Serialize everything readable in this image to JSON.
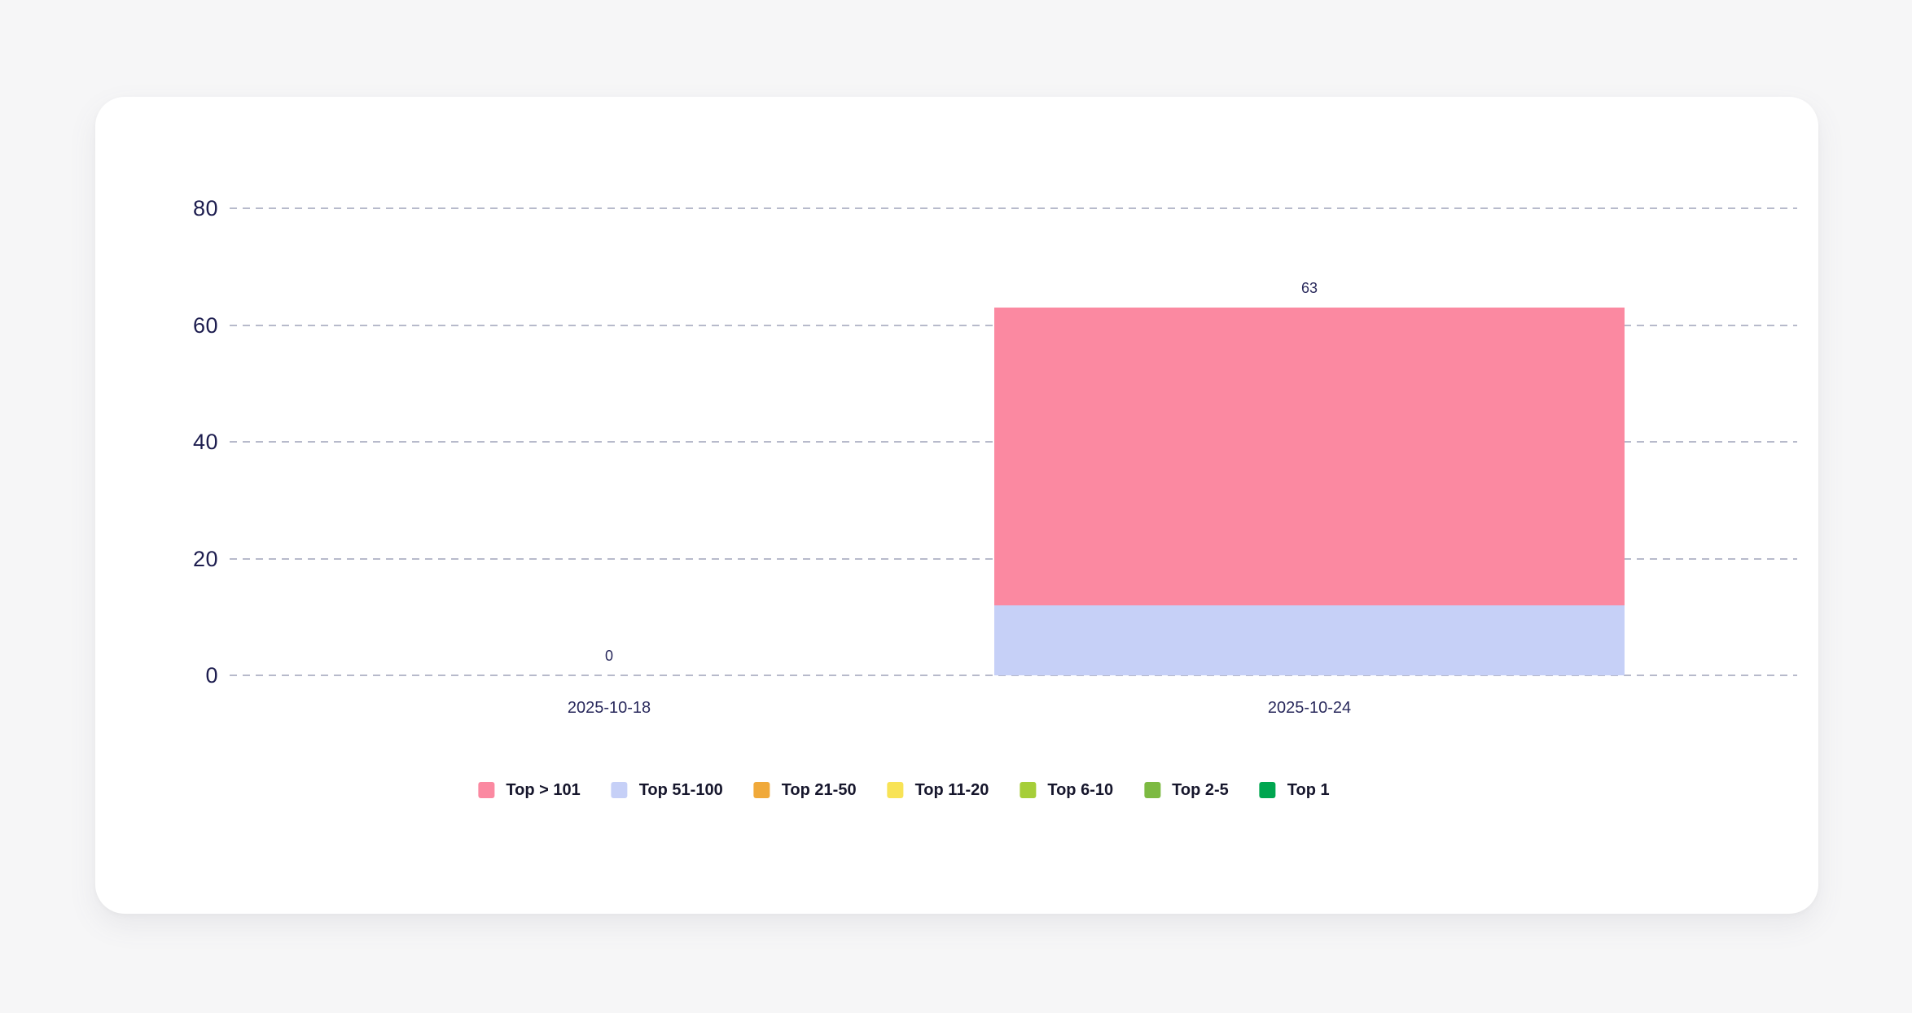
{
  "chart_data": {
    "type": "bar",
    "stacked": true,
    "categories": [
      "2025-10-18",
      "2025-10-24"
    ],
    "series": [
      {
        "name": "Top > 101",
        "color": "#fb89a1",
        "values": [
          0,
          51
        ]
      },
      {
        "name": "Top 51-100",
        "color": "#c6d0f7",
        "values": [
          0,
          12
        ]
      },
      {
        "name": "Top 21-50",
        "color": "#f0a93a",
        "values": [
          0,
          0
        ]
      },
      {
        "name": "Top 11-20",
        "color": "#f8e356",
        "values": [
          0,
          0
        ]
      },
      {
        "name": "Top 6-10",
        "color": "#a6ce39",
        "values": [
          0,
          0
        ]
      },
      {
        "name": "Top 2-5",
        "color": "#7dba42",
        "values": [
          0,
          0
        ]
      },
      {
        "name": "Top 1",
        "color": "#00a650",
        "values": [
          0,
          0
        ]
      }
    ],
    "stack_order_note": "stacked bottom-up in reverse legend order (Top 1 at bottom, Top > 101 on top)",
    "totals": [
      0,
      63
    ],
    "total_labels": [
      "0",
      "63"
    ],
    "yticks": [
      0,
      20,
      40,
      60,
      80
    ],
    "ylim": [
      0,
      80
    ],
    "grid": "horizontal dashed lines, no axis lines",
    "legend_position": "bottom"
  },
  "colors": {
    "background": "#f6f6f7",
    "card_background": "#ffffff",
    "gridline": "#b7bacb",
    "axis_tick_text": "#1d1d4f",
    "category_text": "#29295c",
    "value_label_text": "#29295c",
    "legend_text": "#16162c"
  }
}
